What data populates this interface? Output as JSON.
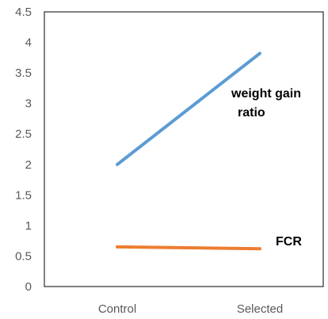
{
  "chart_data": {
    "type": "line",
    "categories": [
      "Control",
      "Selected"
    ],
    "series": [
      {
        "name": "weight gain ratio",
        "label_lines": [
          "weight gain",
          "ratio"
        ],
        "values": [
          2.0,
          3.82
        ],
        "color": "#5b9bd5"
      },
      {
        "name": "FCR",
        "label_lines": [
          "FCR"
        ],
        "values": [
          0.65,
          0.62
        ],
        "color": "#ed7d31"
      }
    ],
    "y_ticks": [
      "0",
      "0.5",
      "1",
      "1.5",
      "2",
      "2.5",
      "3",
      "3.5",
      "4",
      "4.5"
    ],
    "ylim": [
      0,
      4.5
    ],
    "grid": false,
    "legend": "none"
  }
}
